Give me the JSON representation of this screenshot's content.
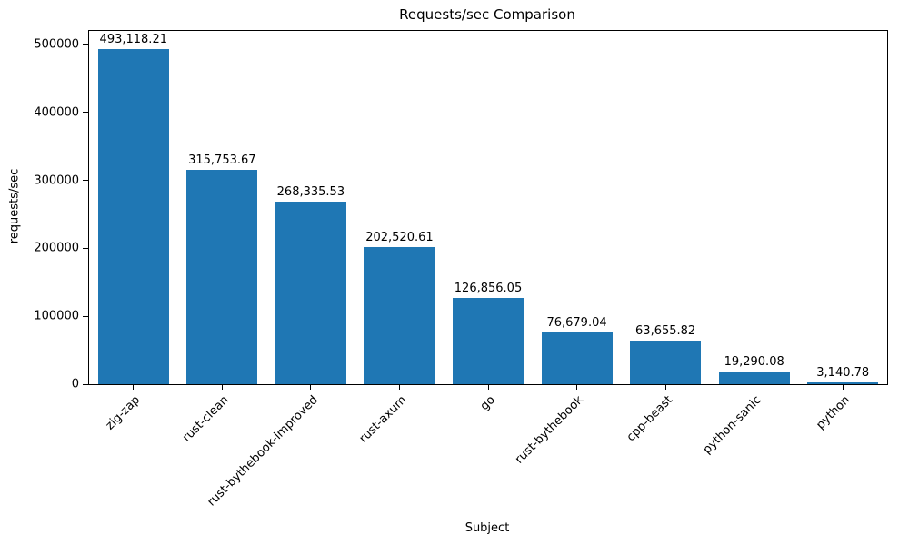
{
  "chart_data": {
    "type": "bar",
    "title": "Requests/sec Comparison",
    "xlabel": "Subject",
    "ylabel": "requests/sec",
    "categories": [
      "zig-zap",
      "rust-clean",
      "rust-bythebook-improved",
      "rust-axum",
      "go",
      "rust-bythebook",
      "cpp-beast",
      "python-sanic",
      "python"
    ],
    "values": [
      493118.21,
      315753.67,
      268335.53,
      202520.61,
      126856.05,
      76679.04,
      63655.82,
      19290.08,
      3140.78
    ],
    "value_labels": [
      "493,118.21",
      "315,753.67",
      "268,335.53",
      "202,520.61",
      "126,856.05",
      "76,679.04",
      "63,655.82",
      "19,290.08",
      "3,140.78"
    ],
    "yticks": [
      0,
      100000,
      200000,
      300000,
      400000,
      500000
    ],
    "ylim": [
      0,
      520000
    ],
    "bar_color": "#1f77b4",
    "bar_width_fraction": 0.8,
    "grid": false,
    "legend": false
  }
}
